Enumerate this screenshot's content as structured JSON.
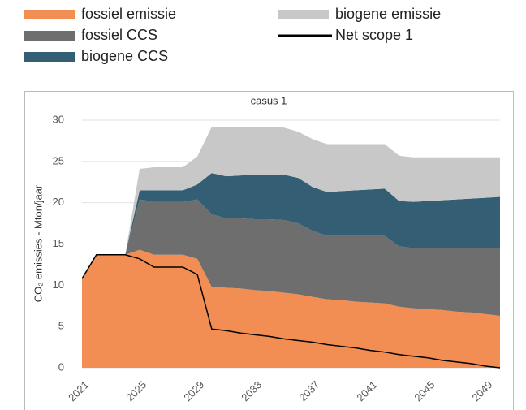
{
  "chart_data": {
    "type": "area",
    "title": "casus 1",
    "y_label": "CO₂ emissies - Mton/jaar",
    "x": [
      2021,
      2022,
      2023,
      2024,
      2025,
      2026,
      2027,
      2028,
      2029,
      2030,
      2031,
      2032,
      2033,
      2034,
      2035,
      2036,
      2037,
      2038,
      2039,
      2040,
      2041,
      2042,
      2043,
      2044,
      2045,
      2046,
      2047,
      2048,
      2049,
      2050
    ],
    "xlim": [
      2021,
      2050
    ],
    "xticks": [
      2021,
      2025,
      2029,
      2033,
      2037,
      2041,
      2045,
      2049
    ],
    "ylim": [
      0,
      30
    ],
    "yticks": [
      0,
      5,
      10,
      15,
      20,
      25,
      30
    ],
    "grid": true,
    "stacked": true,
    "series": [
      {
        "name": "fossiel emissie",
        "color": "#f28e54",
        "values": [
          10.8,
          13.7,
          13.7,
          13.7,
          14.3,
          13.7,
          13.7,
          13.7,
          13.2,
          9.8,
          9.7,
          9.6,
          9.4,
          9.3,
          9.1,
          8.9,
          8.6,
          8.3,
          8.2,
          8.0,
          7.9,
          7.8,
          7.4,
          7.2,
          7.1,
          7.0,
          6.8,
          6.7,
          6.5,
          6.3
        ]
      },
      {
        "name": "fossiel CCS",
        "color": "#6e6e6e",
        "values": [
          0,
          0,
          0,
          0,
          6.1,
          6.4,
          6.4,
          6.4,
          7.2,
          8.8,
          8.4,
          8.5,
          8.6,
          8.7,
          8.8,
          8.6,
          8.0,
          7.7,
          7.8,
          8.0,
          8.1,
          8.2,
          7.3,
          7.3,
          7.4,
          7.5,
          7.7,
          7.8,
          8.0,
          8.2
        ]
      },
      {
        "name": "biogene CCS",
        "color": "#335e74",
        "values": [
          0,
          0,
          0,
          0,
          1.1,
          1.4,
          1.4,
          1.4,
          1.8,
          5.0,
          5.1,
          5.2,
          5.4,
          5.4,
          5.5,
          5.5,
          5.3,
          5.3,
          5.4,
          5.5,
          5.6,
          5.7,
          5.5,
          5.6,
          5.7,
          5.8,
          5.9,
          6.0,
          6.1,
          6.2
        ]
      },
      {
        "name": "biogene emissie",
        "color": "#c8c8c8",
        "values": [
          0,
          0,
          0,
          0,
          2.6,
          2.8,
          2.8,
          2.8,
          3.4,
          5.6,
          6.0,
          5.9,
          5.8,
          5.8,
          5.7,
          5.6,
          5.8,
          5.8,
          5.7,
          5.6,
          5.5,
          5.4,
          5.5,
          5.4,
          5.3,
          5.2,
          5.1,
          5.0,
          4.9,
          4.8
        ]
      },
      {
        "name": "Net scope 1",
        "color": "#000000",
        "type": "line",
        "values": [
          10.8,
          13.7,
          13.7,
          13.7,
          13.2,
          12.2,
          12.2,
          12.2,
          11.3,
          4.7,
          4.5,
          4.2,
          4.0,
          3.8,
          3.5,
          3.3,
          3.1,
          2.8,
          2.6,
          2.4,
          2.1,
          1.9,
          1.6,
          1.4,
          1.2,
          0.9,
          0.7,
          0.5,
          0.2,
          0
        ]
      }
    ]
  }
}
